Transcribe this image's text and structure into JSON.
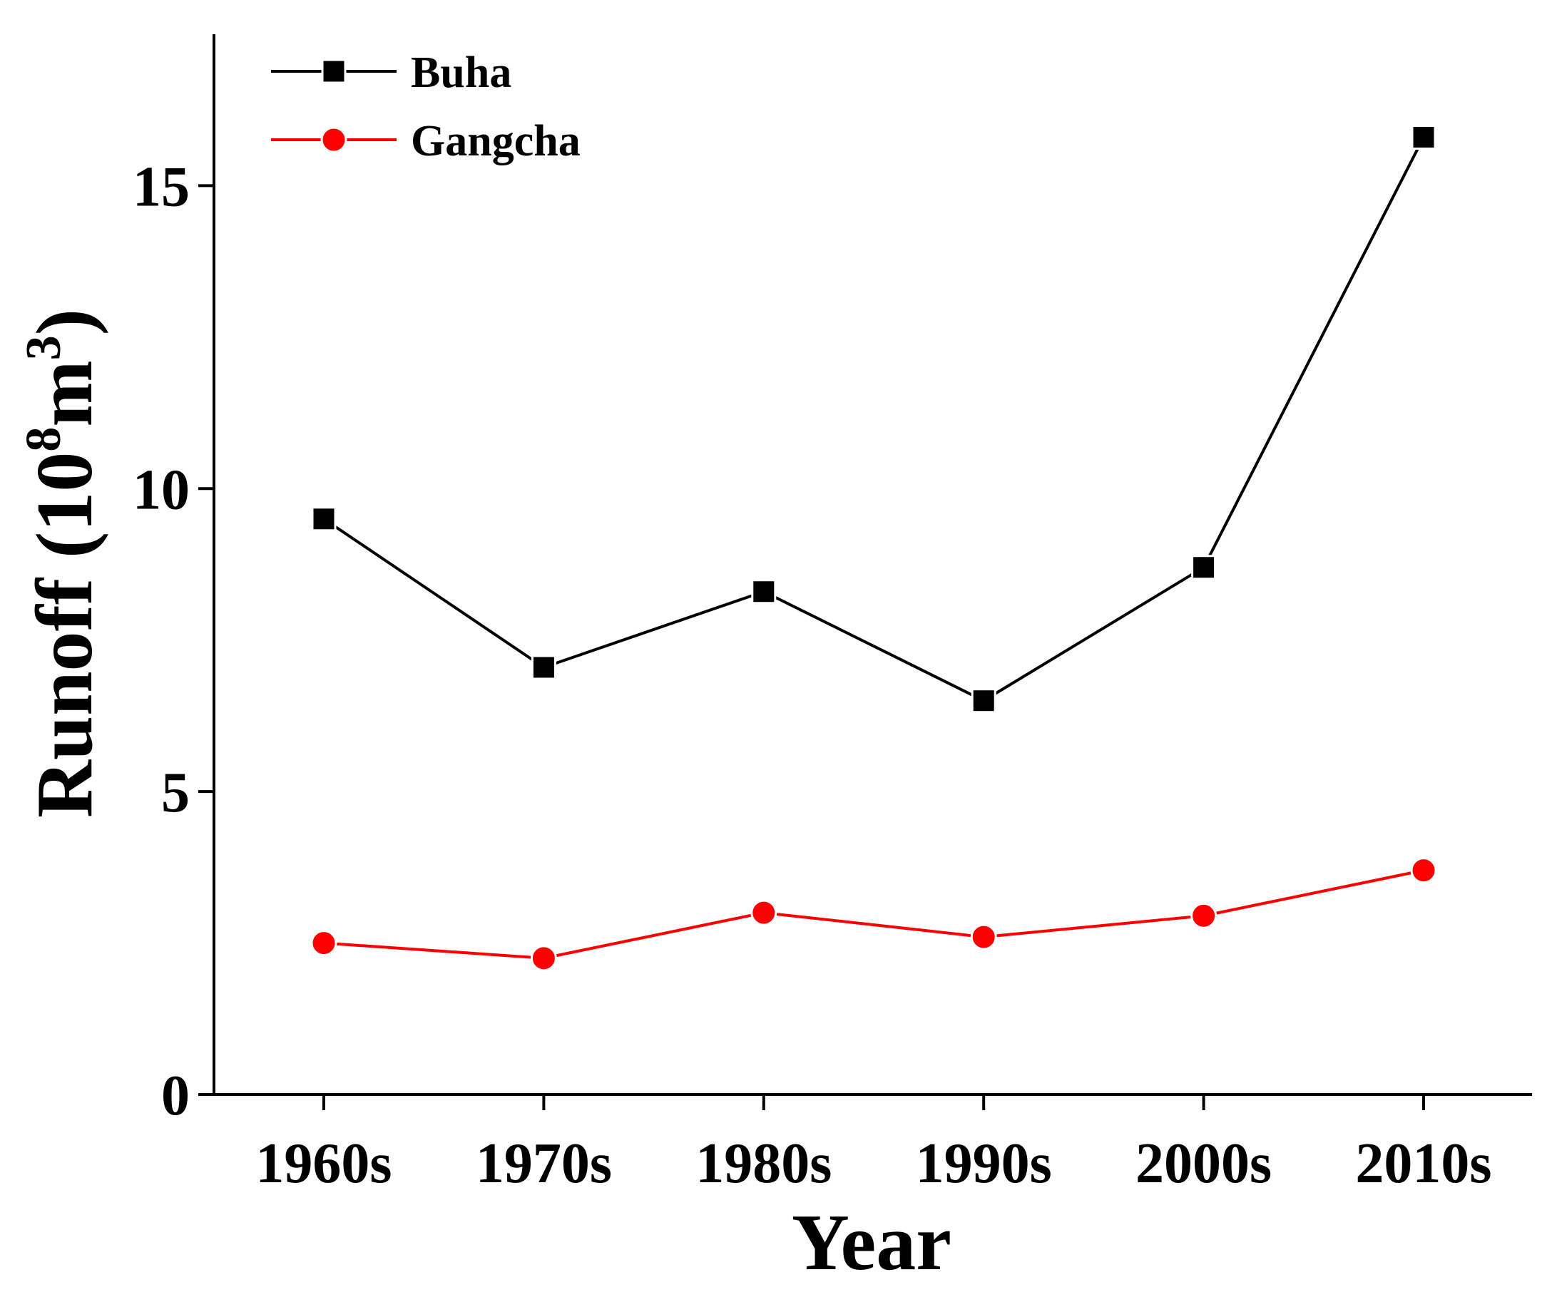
{
  "chart_data": {
    "type": "line",
    "title": "",
    "xlabel": "Year",
    "ylabel": {
      "prefix": "Runoff (10",
      "superscript_1": "8",
      "middle": "m",
      "superscript_2": "3",
      "suffix": ")"
    },
    "categories": [
      "1960s",
      "1970s",
      "1980s",
      "1990s",
      "2000s",
      "2010s"
    ],
    "ylim": [
      0,
      17.5
    ],
    "yticks": [
      0,
      5,
      10,
      15
    ],
    "ytick_labels": [
      "0",
      "5",
      "10",
      "15"
    ],
    "grid": false,
    "legend_position": "top-left",
    "series": [
      {
        "name": "Buha",
        "color": "#000000",
        "marker": "square",
        "values": [
          9.5,
          7.05,
          8.3,
          6.5,
          8.7,
          15.8
        ]
      },
      {
        "name": "Gangcha",
        "color": "#ff0000",
        "marker": "circle",
        "values": [
          2.5,
          2.25,
          3.0,
          2.6,
          2.95,
          3.7
        ]
      }
    ]
  }
}
